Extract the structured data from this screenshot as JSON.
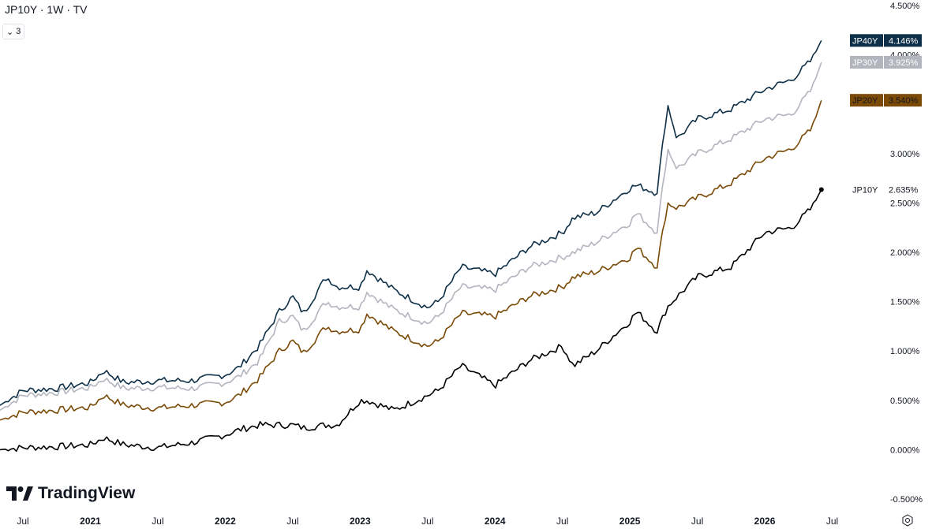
{
  "header": {
    "symbol_line": "JP10Y · 1W · TV",
    "collapse_count": "3"
  },
  "branding": {
    "name": "TradingView"
  },
  "chart_data": {
    "type": "line",
    "title": "JP10Y · 1W · TV",
    "xlabel": "",
    "ylabel": "",
    "ylim": [
      -0.5,
      4.5
    ],
    "xlim": [
      2020.33,
      2026.62
    ],
    "grid": false,
    "legend": "right price scale",
    "y_ticks": [
      "4.500%",
      "4.000%",
      "3.000%",
      "2.500%",
      "2.000%",
      "1.500%",
      "1.000%",
      "0.500%",
      "0.000%",
      "-0.500%"
    ],
    "y_tick_values": [
      4.5,
      4.0,
      3.0,
      2.5,
      2.0,
      1.5,
      1.0,
      0.5,
      0.0,
      -0.5
    ],
    "x_ticks": [
      {
        "label": "Jul",
        "x": 2020.5,
        "bold": false
      },
      {
        "label": "2021",
        "x": 2021.0,
        "bold": true
      },
      {
        "label": "Jul",
        "x": 2021.5,
        "bold": false
      },
      {
        "label": "2022",
        "x": 2022.0,
        "bold": true
      },
      {
        "label": "Jul",
        "x": 2022.5,
        "bold": false
      },
      {
        "label": "2023",
        "x": 2023.0,
        "bold": true
      },
      {
        "label": "Jul",
        "x": 2023.5,
        "bold": false
      },
      {
        "label": "2024",
        "x": 2024.0,
        "bold": true
      },
      {
        "label": "Jul",
        "x": 2024.5,
        "bold": false
      },
      {
        "label": "2025",
        "x": 2025.0,
        "bold": true
      },
      {
        "label": "Jul",
        "x": 2025.5,
        "bold": false
      },
      {
        "label": "2026",
        "x": 2026.0,
        "bold": true
      },
      {
        "label": "Jul",
        "x": 2026.5,
        "bold": false
      }
    ],
    "x": [
      2020.33,
      2020.5,
      2020.75,
      2021.0,
      2021.1,
      2021.25,
      2021.5,
      2021.75,
      2022.0,
      2022.1,
      2022.25,
      2022.4,
      2022.5,
      2022.58,
      2022.75,
      2022.83,
      2023.0,
      2023.05,
      2023.25,
      2023.5,
      2023.58,
      2023.75,
      2024.0,
      2024.25,
      2024.5,
      2024.58,
      2024.75,
      2025.0,
      2025.05,
      2025.2,
      2025.28,
      2025.35,
      2025.5,
      2025.75,
      2026.0,
      2026.2,
      2026.35,
      2026.42
    ],
    "series": [
      {
        "name": "JP40Y",
        "color": "#0e3048",
        "last_label": "4.146%",
        "values": [
          0.45,
          0.6,
          0.62,
          0.68,
          0.8,
          0.68,
          0.7,
          0.7,
          0.76,
          0.83,
          1.05,
          1.4,
          1.55,
          1.38,
          1.75,
          1.65,
          1.65,
          1.82,
          1.62,
          1.44,
          1.5,
          1.85,
          1.78,
          2.05,
          2.2,
          2.35,
          2.4,
          2.65,
          2.68,
          2.6,
          3.5,
          3.15,
          3.35,
          3.45,
          3.65,
          3.75,
          3.95,
          4.146
        ]
      },
      {
        "name": "JP30Y",
        "color": "#b2b5be",
        "last_label": "3.925%",
        "values": [
          0.4,
          0.55,
          0.58,
          0.63,
          0.72,
          0.62,
          0.63,
          0.62,
          0.68,
          0.74,
          0.9,
          1.3,
          1.35,
          1.2,
          1.5,
          1.45,
          1.45,
          1.6,
          1.42,
          1.28,
          1.35,
          1.65,
          1.62,
          1.85,
          1.95,
          2.0,
          2.1,
          2.3,
          2.4,
          2.2,
          3.05,
          2.85,
          3.0,
          3.15,
          3.35,
          3.4,
          3.65,
          3.925
        ]
      },
      {
        "name": "JP20Y",
        "color": "#7a4a06",
        "last_label": "3.540%",
        "values": [
          0.3,
          0.38,
          0.4,
          0.43,
          0.55,
          0.45,
          0.42,
          0.45,
          0.48,
          0.55,
          0.72,
          1.0,
          1.1,
          0.98,
          1.25,
          1.2,
          1.22,
          1.38,
          1.2,
          1.05,
          1.1,
          1.38,
          1.35,
          1.55,
          1.65,
          1.75,
          1.8,
          1.95,
          2.05,
          1.85,
          2.5,
          2.45,
          2.55,
          2.7,
          2.95,
          3.05,
          3.25,
          3.54
        ]
      },
      {
        "name": "JP10Y",
        "color": "#000000",
        "last_label": "2.635%",
        "values": [
          0.0,
          0.02,
          0.03,
          0.05,
          0.12,
          0.05,
          0.02,
          0.07,
          0.15,
          0.2,
          0.25,
          0.25,
          0.25,
          0.22,
          0.25,
          0.25,
          0.5,
          0.5,
          0.4,
          0.55,
          0.6,
          0.85,
          0.65,
          0.9,
          1.05,
          0.85,
          1.0,
          1.3,
          1.4,
          1.2,
          1.45,
          1.55,
          1.75,
          1.85,
          2.2,
          2.25,
          2.45,
          2.635
        ]
      }
    ]
  }
}
